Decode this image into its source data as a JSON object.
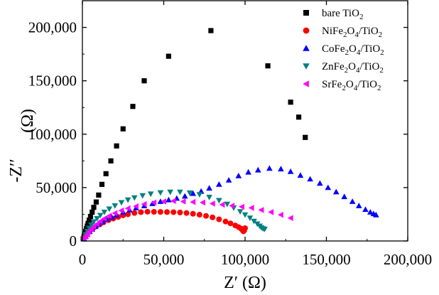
{
  "chart_data": {
    "type": "scatter",
    "title": "",
    "xlabel": "Z′  (Ω)",
    "ylabel_main": "-Z′′",
    "ylabel_unit": "(Ω)",
    "xlim": [
      0,
      200000
    ],
    "ylim": [
      0,
      225000
    ],
    "xticks": [
      0,
      50000,
      100000,
      150000,
      200000
    ],
    "xtick_labels": [
      "0",
      "50,000",
      "100,000",
      "150,000",
      "200,000"
    ],
    "yticks": [
      0,
      50000,
      100000,
      150000,
      200000
    ],
    "ytick_labels": [
      "0",
      "50,000",
      "100,000",
      "150,000",
      "200,000"
    ],
    "grid": false,
    "legend_position": "top-right",
    "series": [
      {
        "name": "bare TiO2",
        "label_base": "bare TiO",
        "label_sub": "2",
        "label_rest": "",
        "marker": "square",
        "color": "#000000",
        "x": [
          500,
          1000,
          1500,
          2000,
          2500,
          3000,
          3500,
          4200,
          5000,
          6000,
          7000,
          8500,
          10000,
          12000,
          14500,
          17500,
          21000,
          25000,
          31000,
          38000,
          53000,
          79000,
          114000,
          128000,
          133000,
          137000
        ],
        "y": [
          2000,
          4000,
          6500,
          9000,
          11500,
          14000,
          16500,
          19500,
          23000,
          27000,
          31500,
          36500,
          43000,
          53000,
          63000,
          75000,
          89000,
          105000,
          126000,
          150000,
          173000,
          197000,
          164000,
          130000,
          116000,
          97000
        ]
      },
      {
        "name": "NiFe2O4/TiO2",
        "label_base": "NiFe",
        "label_sub": "2",
        "label_rest": "O",
        "marker": "circle",
        "color": "#ff0000",
        "x": [
          1000,
          2000,
          3000,
          4000,
          5500,
          7000,
          9000,
          11000,
          13000,
          16000,
          19000,
          22000,
          25000,
          28000,
          32000,
          36000,
          40000,
          44000,
          48000,
          52000,
          56000,
          60000,
          64000,
          68000,
          72000,
          76000,
          80000,
          84000,
          88000,
          91000,
          94000,
          96000,
          97500,
          98500,
          99000,
          99500,
          100000
        ],
        "y": [
          3000,
          5000,
          7000,
          9000,
          11000,
          12500,
          14500,
          16000,
          17500,
          19500,
          21000,
          22500,
          24000,
          25000,
          26200,
          27000,
          27400,
          27300,
          27200,
          27100,
          27000,
          26700,
          26200,
          25500,
          24600,
          23500,
          22100,
          20300,
          18200,
          16500,
          14500,
          13000,
          11500,
          10000,
          9000,
          10000,
          12000
        ]
      },
      {
        "name": "CoFe2O4/TiO2",
        "label_base": "CoFe",
        "label_sub": "2",
        "label_rest": "O",
        "marker": "triangle-up",
        "color": "#0000ff",
        "x": [
          1000,
          2000,
          3000,
          4500,
          6000,
          8000,
          10000,
          12500,
          15000,
          18000,
          21000,
          25000,
          29000,
          33000,
          38000,
          43000,
          48000,
          53000,
          58000,
          63000,
          68000,
          73000,
          78000,
          84000,
          90000,
          96000,
          102000,
          108000,
          115000,
          122000,
          128000,
          134000,
          140000,
          146000,
          151000,
          156000,
          161000,
          166000,
          170000,
          174000,
          177000,
          179000,
          180500
        ],
        "y": [
          2500,
          4500,
          6500,
          9000,
          11000,
          13500,
          15500,
          18000,
          20500,
          22500,
          24500,
          27000,
          29000,
          31000,
          33000,
          35000,
          37000,
          38500,
          40000,
          42000,
          44500,
          46500,
          49500,
          53000,
          57000,
          61000,
          64500,
          66500,
          68000,
          67500,
          65000,
          61500,
          58000,
          54000,
          50000,
          46000,
          41500,
          37000,
          33000,
          29500,
          27000,
          25500,
          24500
        ]
      },
      {
        "name": "ZnFe2O4/TiO2",
        "label_base": "ZnFe",
        "label_sub": "2",
        "label_rest": "O",
        "marker": "triangle-down",
        "color": "#008080",
        "x": [
          1000,
          2000,
          3000,
          4200,
          5500,
          7000,
          9000,
          11000,
          13500,
          16500,
          20000,
          24000,
          28000,
          32000,
          37000,
          42000,
          48000,
          54000,
          60000,
          66000,
          72000,
          78000,
          84000,
          89000,
          93000,
          97000,
          100000,
          103000,
          105500,
          107500,
          109000,
          110000,
          111000,
          112000
        ],
        "y": [
          3000,
          6000,
          9000,
          12000,
          15000,
          18000,
          21000,
          24000,
          27000,
          30000,
          33000,
          36000,
          38500,
          40500,
          42500,
          44000,
          45200,
          45800,
          45800,
          45000,
          43500,
          41000,
          38000,
          34500,
          31000,
          27500,
          24500,
          21500,
          18500,
          16000,
          14000,
          12500,
          11500,
          11000
        ]
      },
      {
        "name": "SrFe2O4/TiO2",
        "label_base": "SrFe",
        "label_sub": "2",
        "label_rest": "O",
        "marker": "triangle-left",
        "color": "#ff00ff",
        "x": [
          1000,
          2000,
          3000,
          4000,
          5500,
          7000,
          9000,
          11000,
          13500,
          16500,
          20000,
          24000,
          28000,
          33000,
          38000,
          44000,
          50000,
          56000,
          62000,
          68000,
          74000,
          80000,
          86000,
          92000,
          98000,
          104000,
          110000,
          116000,
          122000,
          128000
        ],
        "y": [
          2000,
          4000,
          6000,
          8500,
          11000,
          13500,
          16000,
          18500,
          21000,
          23500,
          26000,
          28500,
          30500,
          32500,
          34500,
          36000,
          37000,
          37500,
          37000,
          36500,
          36000,
          35000,
          34000,
          33000,
          32000,
          31000,
          29000,
          27000,
          24500,
          21500
        ]
      }
    ]
  }
}
